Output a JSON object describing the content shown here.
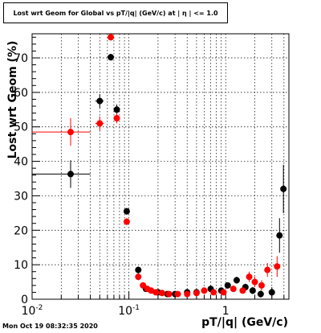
{
  "chart_data": {
    "type": "scatter",
    "title": "Lost wrt Geom for Global vs pT/|q| (GeV/c) at |  η | <= 1.0",
    "xlabel": "pT/|q| (GeV/c)",
    "ylabel": "Lost wrt Geom (%)",
    "xscale": "log",
    "xlim": [
      0.01,
      4.5
    ],
    "ylim": [
      0,
      77
    ],
    "grid": true,
    "x_ticks": [
      {
        "value": 0.01,
        "base": "10",
        "exp": "-2"
      },
      {
        "value": 0.1,
        "base": "10",
        "exp": "-1"
      },
      {
        "value": 1,
        "base": "1",
        "exp": ""
      }
    ],
    "y_ticks": [
      0,
      10,
      20,
      30,
      40,
      50,
      60,
      70
    ],
    "series": [
      {
        "color": "#000000",
        "points": [
          {
            "x": 0.025,
            "y": 36.3,
            "xerr": 0.015,
            "yerr": 4
          },
          {
            "x": 0.05,
            "y": 57.5,
            "xerr": 0.005,
            "yerr": 2
          },
          {
            "x": 0.065,
            "y": 70.2,
            "xerr": 0.003,
            "yerr": 1
          },
          {
            "x": 0.075,
            "y": 55.0,
            "xerr": 0.004,
            "yerr": 1.5
          },
          {
            "x": 0.095,
            "y": 25.5,
            "xerr": 0.006,
            "yerr": 1
          },
          {
            "x": 0.125,
            "y": 8.5,
            "xerr": 0.006,
            "yerr": 1
          },
          {
            "x": 0.15,
            "y": 3.0,
            "xerr": 0.005,
            "yerr": 0.5
          },
          {
            "x": 0.2,
            "y": 2.0,
            "xerr": 0.01,
            "yerr": 0.4
          },
          {
            "x": 0.25,
            "y": 1.5,
            "xerr": 0.01,
            "yerr": 0.3
          },
          {
            "x": 0.3,
            "y": 1.5,
            "xerr": 0.01,
            "yerr": 0.3
          },
          {
            "x": 0.4,
            "y": 2.0,
            "xerr": 0.02,
            "yerr": 0.4
          },
          {
            "x": 0.5,
            "y": 2.0,
            "xerr": 0.02,
            "yerr": 0.4
          },
          {
            "x": 0.7,
            "y": 3.0,
            "xerr": 0.03,
            "yerr": 0.6
          },
          {
            "x": 0.9,
            "y": 2.5,
            "xerr": 0.03,
            "yerr": 0.6
          },
          {
            "x": 1.05,
            "y": 4.0,
            "xerr": 0.04,
            "yerr": 0.8
          },
          {
            "x": 1.3,
            "y": 5.5,
            "xerr": 0.05,
            "yerr": 1
          },
          {
            "x": 1.6,
            "y": 3.5,
            "xerr": 0.05,
            "yerr": 1
          },
          {
            "x": 1.9,
            "y": 2.5,
            "xerr": 0.06,
            "yerr": 1
          },
          {
            "x": 2.3,
            "y": 1.5,
            "xerr": 0.08,
            "yerr": 1
          },
          {
            "x": 3.0,
            "y": 2.0,
            "xerr": 0.1,
            "yerr": 1.5
          },
          {
            "x": 3.6,
            "y": 18.5,
            "xerr": 0.15,
            "yerr": 5
          },
          {
            "x": 3.95,
            "y": 32.0,
            "xerr": 0.15,
            "yerr": 7
          }
        ]
      },
      {
        "color": "#ff0000",
        "points": [
          {
            "x": 0.025,
            "y": 48.5,
            "xerr": 0.015,
            "yerr": 4
          },
          {
            "x": 0.05,
            "y": 51.0,
            "xerr": 0.005,
            "yerr": 2
          },
          {
            "x": 0.065,
            "y": 76.0,
            "xerr": 0.003,
            "yerr": 1
          },
          {
            "x": 0.075,
            "y": 52.5,
            "xerr": 0.004,
            "yerr": 1.5
          },
          {
            "x": 0.095,
            "y": 22.5,
            "xerr": 0.006,
            "yerr": 1
          },
          {
            "x": 0.125,
            "y": 6.5,
            "xerr": 0.006,
            "yerr": 1
          },
          {
            "x": 0.14,
            "y": 4.0,
            "xerr": 0.005,
            "yerr": 0.5
          },
          {
            "x": 0.155,
            "y": 3.0,
            "xerr": 0.005,
            "yerr": 0.5
          },
          {
            "x": 0.17,
            "y": 2.5,
            "xerr": 0.006,
            "yerr": 0.4
          },
          {
            "x": 0.19,
            "y": 2.0,
            "xerr": 0.007,
            "yerr": 0.4
          },
          {
            "x": 0.22,
            "y": 1.8,
            "xerr": 0.008,
            "yerr": 0.3
          },
          {
            "x": 0.26,
            "y": 1.5,
            "xerr": 0.01,
            "yerr": 0.3
          },
          {
            "x": 0.32,
            "y": 1.5,
            "xerr": 0.01,
            "yerr": 0.3
          },
          {
            "x": 0.4,
            "y": 1.5,
            "xerr": 0.02,
            "yerr": 0.3
          },
          {
            "x": 0.5,
            "y": 1.8,
            "xerr": 0.02,
            "yerr": 0.4
          },
          {
            "x": 0.6,
            "y": 2.5,
            "xerr": 0.03,
            "yerr": 0.5
          },
          {
            "x": 0.75,
            "y": 2.0,
            "xerr": 0.03,
            "yerr": 0.5
          },
          {
            "x": 0.95,
            "y": 2.0,
            "xerr": 0.04,
            "yerr": 0.6
          },
          {
            "x": 1.2,
            "y": 3.0,
            "xerr": 0.05,
            "yerr": 0.8
          },
          {
            "x": 1.5,
            "y": 2.5,
            "xerr": 0.05,
            "yerr": 0.8
          },
          {
            "x": 1.75,
            "y": 6.5,
            "xerr": 0.06,
            "yerr": 1.5
          },
          {
            "x": 2.0,
            "y": 5.0,
            "xerr": 0.07,
            "yerr": 1.5
          },
          {
            "x": 2.35,
            "y": 4.0,
            "xerr": 0.08,
            "yerr": 1.5
          },
          {
            "x": 2.7,
            "y": 8.5,
            "xerr": 0.1,
            "yerr": 2
          },
          {
            "x": 3.4,
            "y": 9.5,
            "xerr": 0.15,
            "yerr": 3
          }
        ]
      }
    ]
  },
  "footer": {
    "timestamp": "Mon Oct 19 08:32:35 2020"
  }
}
